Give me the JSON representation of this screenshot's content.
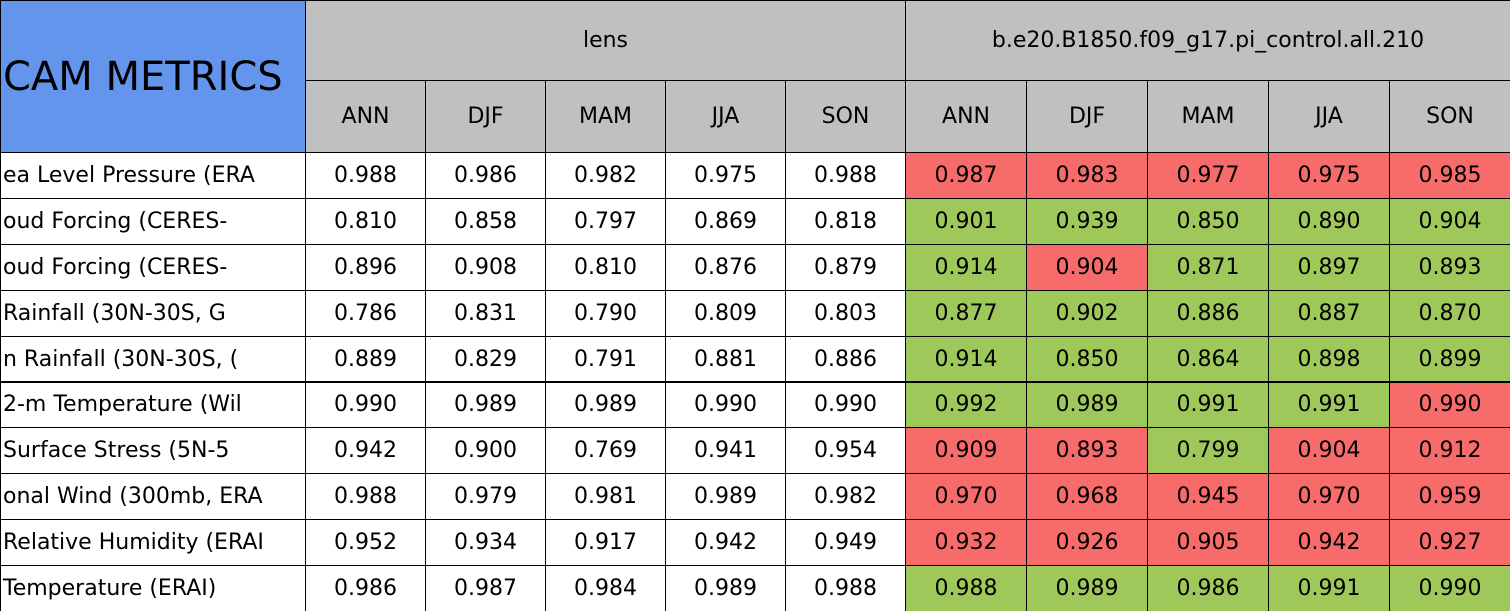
{
  "table": {
    "corner": "CAM METRICS",
    "groups": [
      "lens",
      "b.e20.B1850.f09_g17.pi_control.all.210"
    ],
    "seasons": [
      [
        "ANN",
        "DJF",
        "MAM",
        "JJA",
        "SON"
      ],
      [
        "ANN",
        "DJF",
        "MAM",
        "JJA",
        "SON"
      ]
    ],
    "row_labels": [
      "ea Level Pressure (ERA",
      "oud Forcing (CERES-",
      "oud Forcing (CERES-",
      "Rainfall (30N-30S, G",
      "n Rainfall (30N-30S, (",
      "2-m Temperature (Wil",
      "Surface Stress (5N-5",
      "onal Wind (300mb, ERA",
      "Relative Humidity (ERAI",
      "Temperature (ERAI)"
    ],
    "rows": [
      [
        "0.988",
        "0.986",
        "0.982",
        "0.975",
        "0.988",
        "0.987",
        "0.983",
        "0.977",
        "0.975",
        "0.985"
      ],
      [
        "0.810",
        "0.858",
        "0.797",
        "0.869",
        "0.818",
        "0.901",
        "0.939",
        "0.850",
        "0.890",
        "0.904"
      ],
      [
        "0.896",
        "0.908",
        "0.810",
        "0.876",
        "0.879",
        "0.914",
        "0.904",
        "0.871",
        "0.897",
        "0.893"
      ],
      [
        "0.786",
        "0.831",
        "0.790",
        "0.809",
        "0.803",
        "0.877",
        "0.902",
        "0.886",
        "0.887",
        "0.870"
      ],
      [
        "0.889",
        "0.829",
        "0.791",
        "0.881",
        "0.886",
        "0.914",
        "0.850",
        "0.864",
        "0.898",
        "0.899"
      ],
      [
        "0.990",
        "0.989",
        "0.989",
        "0.990",
        "0.990",
        "0.992",
        "0.989",
        "0.991",
        "0.991",
        "0.990"
      ],
      [
        "0.942",
        "0.900",
        "0.769",
        "0.941",
        "0.954",
        "0.909",
        "0.893",
        "0.799",
        "0.904",
        "0.912"
      ],
      [
        "0.988",
        "0.979",
        "0.981",
        "0.989",
        "0.982",
        "0.970",
        "0.968",
        "0.945",
        "0.970",
        "0.959"
      ],
      [
        "0.952",
        "0.934",
        "0.917",
        "0.942",
        "0.949",
        "0.932",
        "0.926",
        "0.905",
        "0.942",
        "0.927"
      ],
      [
        "0.986",
        "0.987",
        "0.984",
        "0.989",
        "0.988",
        "0.988",
        "0.989",
        "0.986",
        "0.991",
        "0.990"
      ]
    ],
    "fills": [
      [
        "r",
        "r",
        "r",
        "r",
        "r"
      ],
      [
        "g",
        "g",
        "g",
        "g",
        "g"
      ],
      [
        "g",
        "r",
        "g",
        "g",
        "g"
      ],
      [
        "g",
        "g",
        "g",
        "g",
        "g"
      ],
      [
        "g",
        "g",
        "g",
        "g",
        "g"
      ],
      [
        "g",
        "g",
        "g",
        "g",
        "r"
      ],
      [
        "r",
        "r",
        "g",
        "r",
        "r"
      ],
      [
        "r",
        "r",
        "r",
        "r",
        "r"
      ],
      [
        "r",
        "r",
        "r",
        "r",
        "r"
      ],
      [
        "g",
        "g",
        "g",
        "g",
        "g"
      ]
    ],
    "palette": {
      "r": "#f76b6b",
      "g": "#9fc85a",
      "header": "#c0c0c0",
      "corner": "#6495ed",
      "plain": "#ffffff"
    }
  }
}
